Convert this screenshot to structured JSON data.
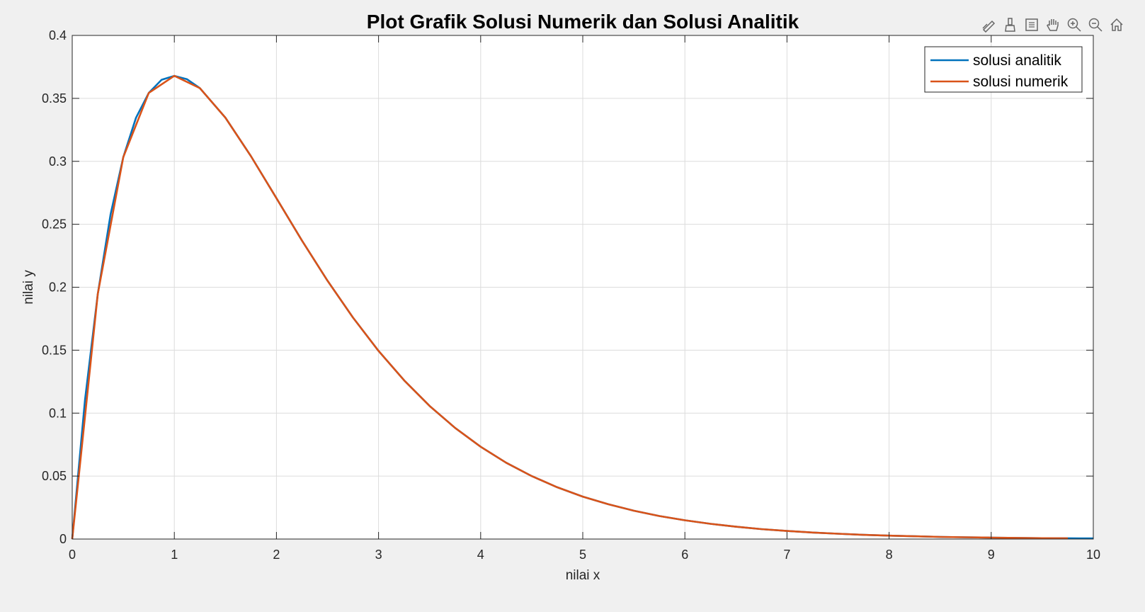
{
  "toolbar": {
    "icons": [
      "edit-plot-icon",
      "brush-icon",
      "data-tips-icon",
      "pan-hand-icon",
      "zoom-in-icon",
      "zoom-out-icon",
      "restore-view-home-icon"
    ]
  },
  "colors": {
    "background": "#f0f0f0",
    "axes_background": "#ffffff",
    "grid": "#dcdcdc",
    "axis": "#262626",
    "series_analitik": "#0072bd",
    "series_numerik": "#d95319"
  },
  "chart_data": {
    "type": "line",
    "title": "Plot Grafik Solusi Numerik dan Solusi Analitik",
    "xlabel": "nilai x",
    "ylabel": "nilai y",
    "xlim": [
      0,
      10
    ],
    "ylim": [
      0,
      0.4
    ],
    "xticks": [
      "0",
      "1",
      "2",
      "3",
      "4",
      "5",
      "6",
      "7",
      "8",
      "9",
      "10"
    ],
    "yticks": [
      "0",
      "0.05",
      "0.1",
      "0.15",
      "0.2",
      "0.25",
      "0.3",
      "0.35",
      "0.4"
    ],
    "grid": true,
    "legend_position": "top-right",
    "series": [
      {
        "name": "solusi analitik",
        "color": "#0072bd",
        "x": [
          0,
          0.125,
          0.25,
          0.375,
          0.5,
          0.625,
          0.75,
          0.875,
          1,
          1.125,
          1.25,
          1.5,
          1.75,
          2,
          2.25,
          2.5,
          2.75,
          3,
          3.25,
          3.5,
          3.75,
          4,
          4.25,
          4.5,
          4.75,
          5,
          5.25,
          5.5,
          5.75,
          6,
          6.25,
          6.5,
          6.75,
          7,
          7.25,
          7.5,
          7.75,
          8,
          8.25,
          8.5,
          8.75,
          9,
          9.25,
          9.5,
          9.75,
          10
        ],
        "y": [
          0,
          0.1103,
          0.1947,
          0.2577,
          0.3033,
          0.3346,
          0.3543,
          0.3648,
          0.3679,
          0.3652,
          0.3581,
          0.3347,
          0.3041,
          0.2707,
          0.2371,
          0.2052,
          0.1758,
          0.1494,
          0.1261,
          0.1057,
          0.0882,
          0.0733,
          0.0606,
          0.05,
          0.0411,
          0.0337,
          0.0276,
          0.0225,
          0.0183,
          0.0149,
          0.0121,
          0.0098,
          0.0079,
          0.0064,
          0.0052,
          0.0042,
          0.0033,
          0.0027,
          0.0022,
          0.0017,
          0.0014,
          0.0011,
          0.0009,
          0.0007,
          0.0006,
          0.0005
        ]
      },
      {
        "name": "solusi numerik",
        "color": "#d95319",
        "x": [
          0,
          0.25,
          0.5,
          0.75,
          1,
          1.25,
          1.5,
          1.75,
          2,
          2.25,
          2.5,
          2.75,
          3,
          3.25,
          3.5,
          3.75,
          4,
          4.25,
          4.5,
          4.75,
          5,
          5.25,
          5.5,
          5.75,
          6,
          6.25,
          6.5,
          6.75,
          7,
          7.25,
          7.5,
          7.75,
          8,
          8.25,
          8.5,
          8.75,
          9,
          9.25,
          9.5,
          9.75
        ],
        "y": [
          0,
          0.1947,
          0.3033,
          0.3543,
          0.3679,
          0.3581,
          0.3347,
          0.3041,
          0.2707,
          0.2371,
          0.2052,
          0.1758,
          0.1494,
          0.1261,
          0.1057,
          0.0882,
          0.0733,
          0.0606,
          0.05,
          0.0411,
          0.0337,
          0.0276,
          0.0225,
          0.0183,
          0.0149,
          0.0121,
          0.0098,
          0.0079,
          0.0064,
          0.0052,
          0.0042,
          0.0033,
          0.0027,
          0.0022,
          0.0017,
          0.0014,
          0.0011,
          0.0009,
          0.0007,
          0.0006
        ]
      }
    ]
  }
}
